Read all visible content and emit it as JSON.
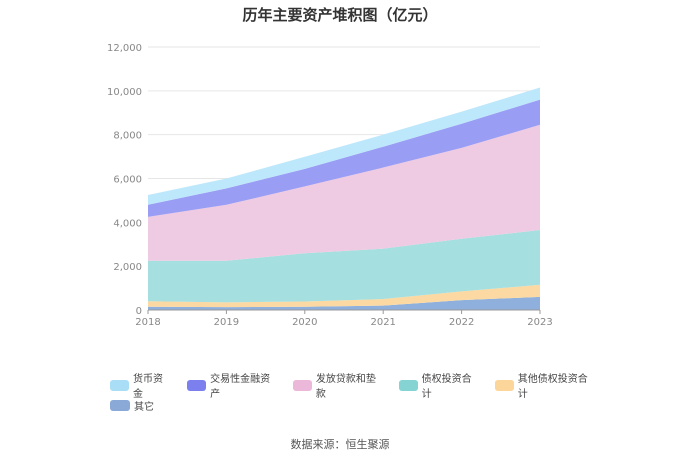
{
  "chart_data": {
    "type": "area",
    "stacked": true,
    "title": "历年主要资产堆积图（亿元）",
    "x": [
      "2018",
      "2019",
      "2020",
      "2021",
      "2022",
      "2023"
    ],
    "yticks": [
      "0",
      "2,000",
      "4,000",
      "6,000",
      "8,000",
      "10,000",
      "12,000"
    ],
    "ylim": [
      0,
      12000
    ],
    "grid": true,
    "legend_position": "bottom-left",
    "series": [
      {
        "name": "其它",
        "color": "#8fb0dc",
        "values": [
          150,
          130,
          150,
          200,
          450,
          600
        ]
      },
      {
        "name": "其他债权投资合计",
        "color": "#fcd9a2",
        "values": [
          250,
          220,
          240,
          300,
          400,
          550
        ]
      },
      {
        "name": "债权投资合计",
        "color": "#a5dfe0",
        "values": [
          1850,
          1900,
          2200,
          2300,
          2400,
          2500
        ]
      },
      {
        "name": "发放贷款和垫款",
        "color": "#eecbe2",
        "values": [
          2000,
          2550,
          3050,
          3700,
          4150,
          4800
        ]
      },
      {
        "name": "交易性金融资产",
        "color": "#9a9df4",
        "values": [
          550,
          750,
          800,
          950,
          1100,
          1150
        ]
      },
      {
        "name": "货币资金",
        "color": "#bde7fb",
        "values": [
          450,
          450,
          550,
          550,
          550,
          550
        ]
      }
    ]
  },
  "legend": {
    "row1": [
      {
        "label": "货币资金",
        "color": "#a9def6"
      },
      {
        "label": "交易性金融资产",
        "color": "#7b80ee"
      },
      {
        "label": "发放贷款和垫款",
        "color": "#ebb8d9"
      },
      {
        "label": "债权投资合计",
        "color": "#85d3d3"
      },
      {
        "label": "其他债权投资合计",
        "color": "#fbd59a"
      }
    ],
    "row2": [
      {
        "label": "其它",
        "color": "#8aa9d6"
      }
    ]
  },
  "source": "数据来源：恒生聚源"
}
